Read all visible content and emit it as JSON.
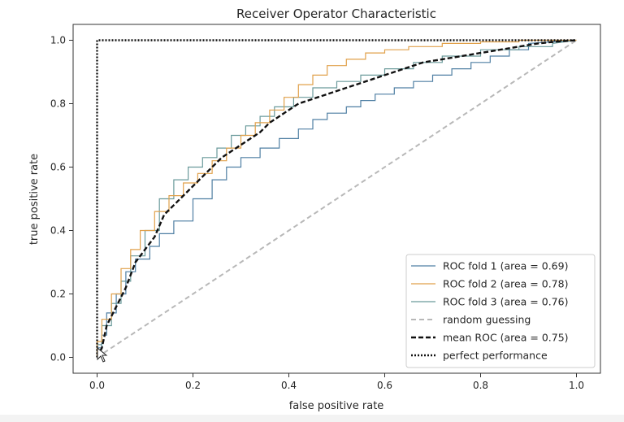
{
  "chart_data": {
    "type": "line",
    "title": "Receiver Operator Characteristic",
    "xlabel": "false positive rate",
    "ylabel": "true positive rate",
    "xlim": [
      -0.05,
      1.05
    ],
    "ylim": [
      -0.05,
      1.05
    ],
    "xticks": [
      0.0,
      0.2,
      0.4,
      0.6,
      0.8,
      1.0
    ],
    "yticks": [
      0.0,
      0.2,
      0.4,
      0.6,
      0.8,
      1.0
    ],
    "xtick_labels": [
      "0.0",
      "0.2",
      "0.4",
      "0.6",
      "0.8",
      "1.0"
    ],
    "ytick_labels": [
      "0.0",
      "0.2",
      "0.4",
      "0.6",
      "0.8",
      "1.0"
    ],
    "legend_position": "lower-right",
    "colors": {
      "fold1": "#4f7fa3",
      "fold2": "#e0a04a",
      "fold3": "#6a9a9b",
      "random": "#b8b8b8",
      "mean": "#111111",
      "perfect": "#111111"
    },
    "series": [
      {
        "name": "ROC fold 1 (area = 0.69)",
        "key": "fold1",
        "style": "solid",
        "x": [
          0.0,
          0.0,
          0.01,
          0.01,
          0.02,
          0.02,
          0.04,
          0.04,
          0.06,
          0.06,
          0.08,
          0.08,
          0.11,
          0.11,
          0.13,
          0.13,
          0.16,
          0.16,
          0.2,
          0.2,
          0.24,
          0.24,
          0.27,
          0.27,
          0.3,
          0.3,
          0.34,
          0.34,
          0.38,
          0.38,
          0.42,
          0.42,
          0.45,
          0.45,
          0.48,
          0.48,
          0.52,
          0.52,
          0.55,
          0.55,
          0.58,
          0.58,
          0.62,
          0.62,
          0.66,
          0.66,
          0.7,
          0.7,
          0.74,
          0.74,
          0.78,
          0.78,
          0.82,
          0.82,
          0.86,
          0.86,
          0.9,
          0.9,
          1.0
        ],
        "y": [
          0.0,
          0.03,
          0.03,
          0.07,
          0.07,
          0.14,
          0.14,
          0.2,
          0.2,
          0.27,
          0.27,
          0.31,
          0.31,
          0.35,
          0.35,
          0.39,
          0.39,
          0.43,
          0.43,
          0.5,
          0.5,
          0.56,
          0.56,
          0.6,
          0.6,
          0.63,
          0.63,
          0.66,
          0.66,
          0.69,
          0.69,
          0.72,
          0.72,
          0.75,
          0.75,
          0.77,
          0.77,
          0.79,
          0.79,
          0.81,
          0.81,
          0.83,
          0.83,
          0.85,
          0.85,
          0.87,
          0.87,
          0.89,
          0.89,
          0.91,
          0.91,
          0.93,
          0.93,
          0.95,
          0.95,
          0.97,
          0.97,
          0.99,
          1.0
        ]
      },
      {
        "name": "ROC fold 2 (area = 0.78)",
        "key": "fold2",
        "style": "solid",
        "x": [
          0.0,
          0.0,
          0.01,
          0.01,
          0.03,
          0.03,
          0.05,
          0.05,
          0.07,
          0.07,
          0.09,
          0.09,
          0.12,
          0.12,
          0.15,
          0.15,
          0.18,
          0.18,
          0.21,
          0.21,
          0.24,
          0.24,
          0.27,
          0.27,
          0.3,
          0.3,
          0.33,
          0.33,
          0.36,
          0.36,
          0.39,
          0.39,
          0.42,
          0.42,
          0.45,
          0.45,
          0.48,
          0.48,
          0.52,
          0.52,
          0.56,
          0.56,
          0.6,
          0.6,
          0.65,
          0.65,
          0.72,
          0.72,
          0.8,
          0.8,
          0.88,
          0.88,
          1.0
        ],
        "y": [
          0.0,
          0.05,
          0.05,
          0.12,
          0.12,
          0.2,
          0.2,
          0.28,
          0.28,
          0.34,
          0.34,
          0.4,
          0.4,
          0.46,
          0.46,
          0.51,
          0.51,
          0.55,
          0.55,
          0.58,
          0.58,
          0.62,
          0.62,
          0.66,
          0.66,
          0.7,
          0.7,
          0.74,
          0.74,
          0.78,
          0.78,
          0.82,
          0.82,
          0.86,
          0.86,
          0.89,
          0.89,
          0.92,
          0.92,
          0.94,
          0.94,
          0.96,
          0.96,
          0.97,
          0.97,
          0.98,
          0.98,
          0.99,
          0.99,
          0.995,
          0.995,
          1.0,
          1.0
        ]
      },
      {
        "name": "ROC fold 3 (area = 0.76)",
        "key": "fold3",
        "style": "solid",
        "x": [
          0.0,
          0.0,
          0.01,
          0.01,
          0.03,
          0.03,
          0.05,
          0.05,
          0.07,
          0.07,
          0.1,
          0.1,
          0.13,
          0.13,
          0.16,
          0.16,
          0.19,
          0.19,
          0.22,
          0.22,
          0.25,
          0.25,
          0.28,
          0.28,
          0.31,
          0.31,
          0.34,
          0.34,
          0.37,
          0.37,
          0.41,
          0.41,
          0.45,
          0.45,
          0.5,
          0.5,
          0.55,
          0.55,
          0.6,
          0.6,
          0.66,
          0.66,
          0.72,
          0.72,
          0.8,
          0.8,
          0.88,
          0.88,
          0.95,
          0.95,
          1.0
        ],
        "y": [
          0.0,
          0.04,
          0.04,
          0.1,
          0.1,
          0.17,
          0.17,
          0.24,
          0.24,
          0.32,
          0.32,
          0.4,
          0.4,
          0.5,
          0.5,
          0.56,
          0.56,
          0.6,
          0.6,
          0.63,
          0.63,
          0.66,
          0.66,
          0.7,
          0.7,
          0.73,
          0.73,
          0.76,
          0.76,
          0.79,
          0.79,
          0.82,
          0.82,
          0.85,
          0.85,
          0.87,
          0.87,
          0.89,
          0.89,
          0.91,
          0.91,
          0.93,
          0.93,
          0.95,
          0.95,
          0.97,
          0.97,
          0.98,
          0.98,
          0.99,
          1.0
        ]
      },
      {
        "name": "random guessing",
        "key": "random",
        "style": "dashed",
        "x": [
          0.0,
          1.0
        ],
        "y": [
          0.0,
          1.0
        ]
      },
      {
        "name": "mean ROC (area = 0.75)",
        "key": "mean",
        "style": "dashed-bold",
        "x": [
          0.0,
          0.01,
          0.02,
          0.04,
          0.06,
          0.08,
          0.1,
          0.12,
          0.14,
          0.16,
          0.18,
          0.2,
          0.22,
          0.24,
          0.26,
          0.28,
          0.3,
          0.32,
          0.34,
          0.36,
          0.38,
          0.4,
          0.42,
          0.44,
          0.46,
          0.48,
          0.5,
          0.52,
          0.54,
          0.56,
          0.58,
          0.6,
          0.62,
          0.64,
          0.66,
          0.68,
          0.7,
          0.72,
          0.74,
          0.76,
          0.78,
          0.8,
          0.82,
          0.84,
          0.86,
          0.88,
          0.9,
          0.92,
          0.94,
          0.96,
          0.98,
          1.0
        ],
        "y": [
          0.0,
          0.03,
          0.1,
          0.16,
          0.22,
          0.3,
          0.34,
          0.38,
          0.45,
          0.48,
          0.51,
          0.54,
          0.57,
          0.6,
          0.63,
          0.65,
          0.67,
          0.69,
          0.71,
          0.74,
          0.76,
          0.78,
          0.8,
          0.81,
          0.82,
          0.83,
          0.84,
          0.85,
          0.86,
          0.87,
          0.88,
          0.89,
          0.9,
          0.91,
          0.92,
          0.93,
          0.935,
          0.94,
          0.945,
          0.95,
          0.955,
          0.96,
          0.965,
          0.97,
          0.975,
          0.98,
          0.985,
          0.99,
          0.993,
          0.996,
          0.998,
          1.0
        ]
      },
      {
        "name": "perfect performance",
        "key": "perfect",
        "style": "dotted",
        "x": [
          0.0,
          0.0,
          1.0
        ],
        "y": [
          0.0,
          1.0,
          1.0
        ]
      }
    ]
  }
}
